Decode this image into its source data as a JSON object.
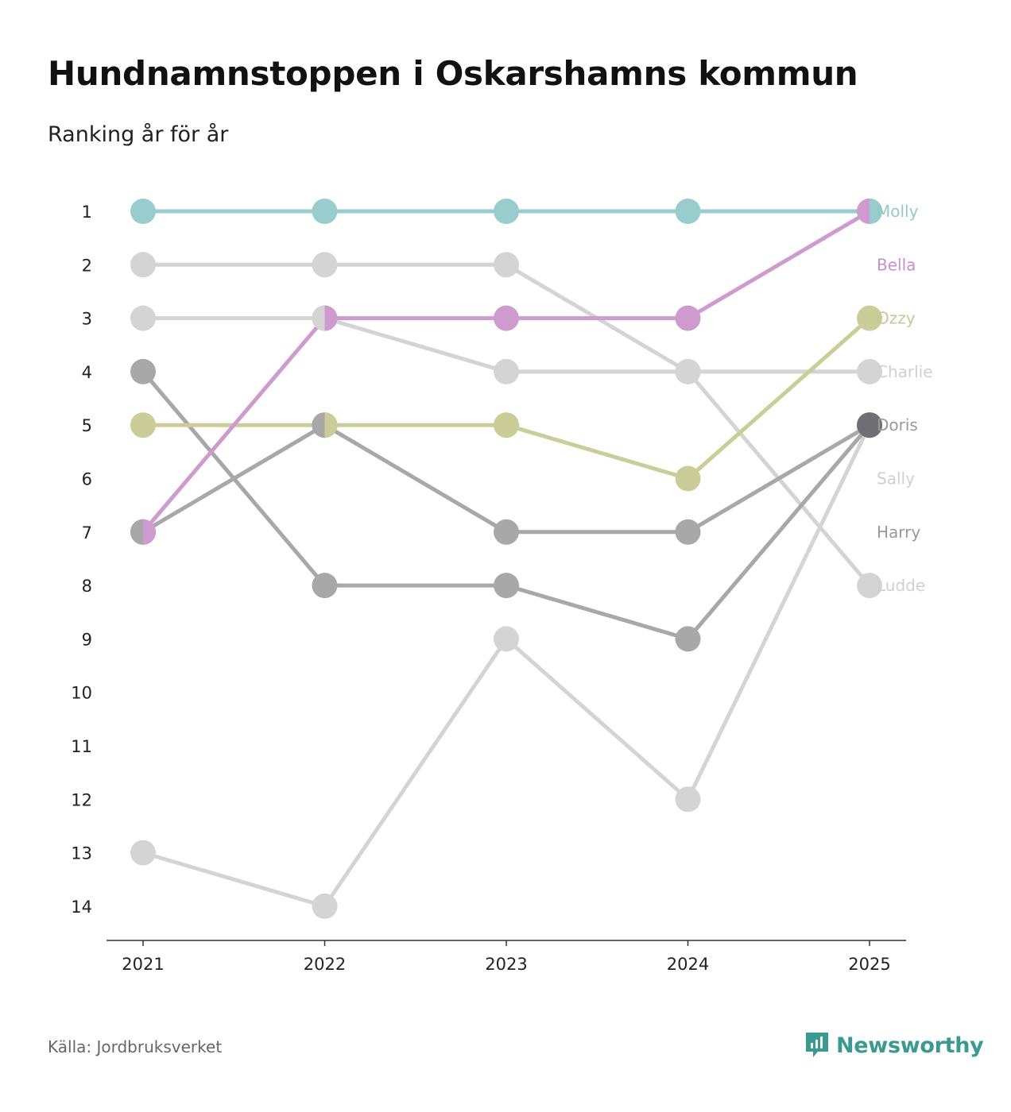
{
  "title": "Hundnamnstoppen i Oskarshamns kommun",
  "subtitle": "Ranking år för år",
  "source": "Källa: Jordbruksverket",
  "brand": "Newsworthy",
  "chart_data": {
    "type": "line",
    "title": "Hundnamnstoppen i Oskarshamns kommun",
    "subtitle": "Ranking år för år",
    "x": [
      "2021",
      "2022",
      "2023",
      "2024",
      "2025"
    ],
    "y_ticks": [
      1,
      2,
      3,
      4,
      5,
      6,
      7,
      8,
      9,
      10,
      11,
      12,
      13,
      14
    ],
    "ylim": [
      1,
      14
    ],
    "y_inverted": true,
    "series": [
      {
        "name": "Ludde",
        "values": [
          2,
          2,
          2,
          4,
          8
        ],
        "color": "#d4d4d4",
        "label_color": "#d0d0d0"
      },
      {
        "name": "Charlie",
        "values": [
          3,
          3,
          4,
          4,
          4
        ],
        "color": "#d4d4d4",
        "label_color": "#d0d0d0"
      },
      {
        "name": "Sally",
        "values": [
          13,
          14,
          9,
          12,
          5
        ],
        "color": "#d4d4d4",
        "label_color": "#d0d0d0"
      },
      {
        "name": "Harry",
        "values": [
          4,
          8,
          8,
          9,
          5
        ],
        "color": "#a8a8a8",
        "label_color": "#999999"
      },
      {
        "name": "Doris",
        "values": [
          7,
          5,
          7,
          7,
          5
        ],
        "color": "#a8a8a8",
        "label_color": "#999999"
      },
      {
        "name": "Ozzy",
        "values": [
          5,
          5,
          5,
          6,
          3
        ],
        "color": "#cbcd99",
        "label_color": "#c6c890"
      },
      {
        "name": "Bella",
        "values": [
          7,
          3,
          3,
          3,
          1
        ],
        "color": "#cf9bcf",
        "label_color": "#c98fc9"
      },
      {
        "name": "Molly",
        "values": [
          1,
          1,
          1,
          1,
          1
        ],
        "color": "#99cccc",
        "label_color": "#95c9c9"
      }
    ],
    "label_order": [
      "Molly",
      "Bella",
      "Ozzy",
      "Charlie",
      "Doris",
      "Sally",
      "Harry",
      "Ludde"
    ]
  }
}
